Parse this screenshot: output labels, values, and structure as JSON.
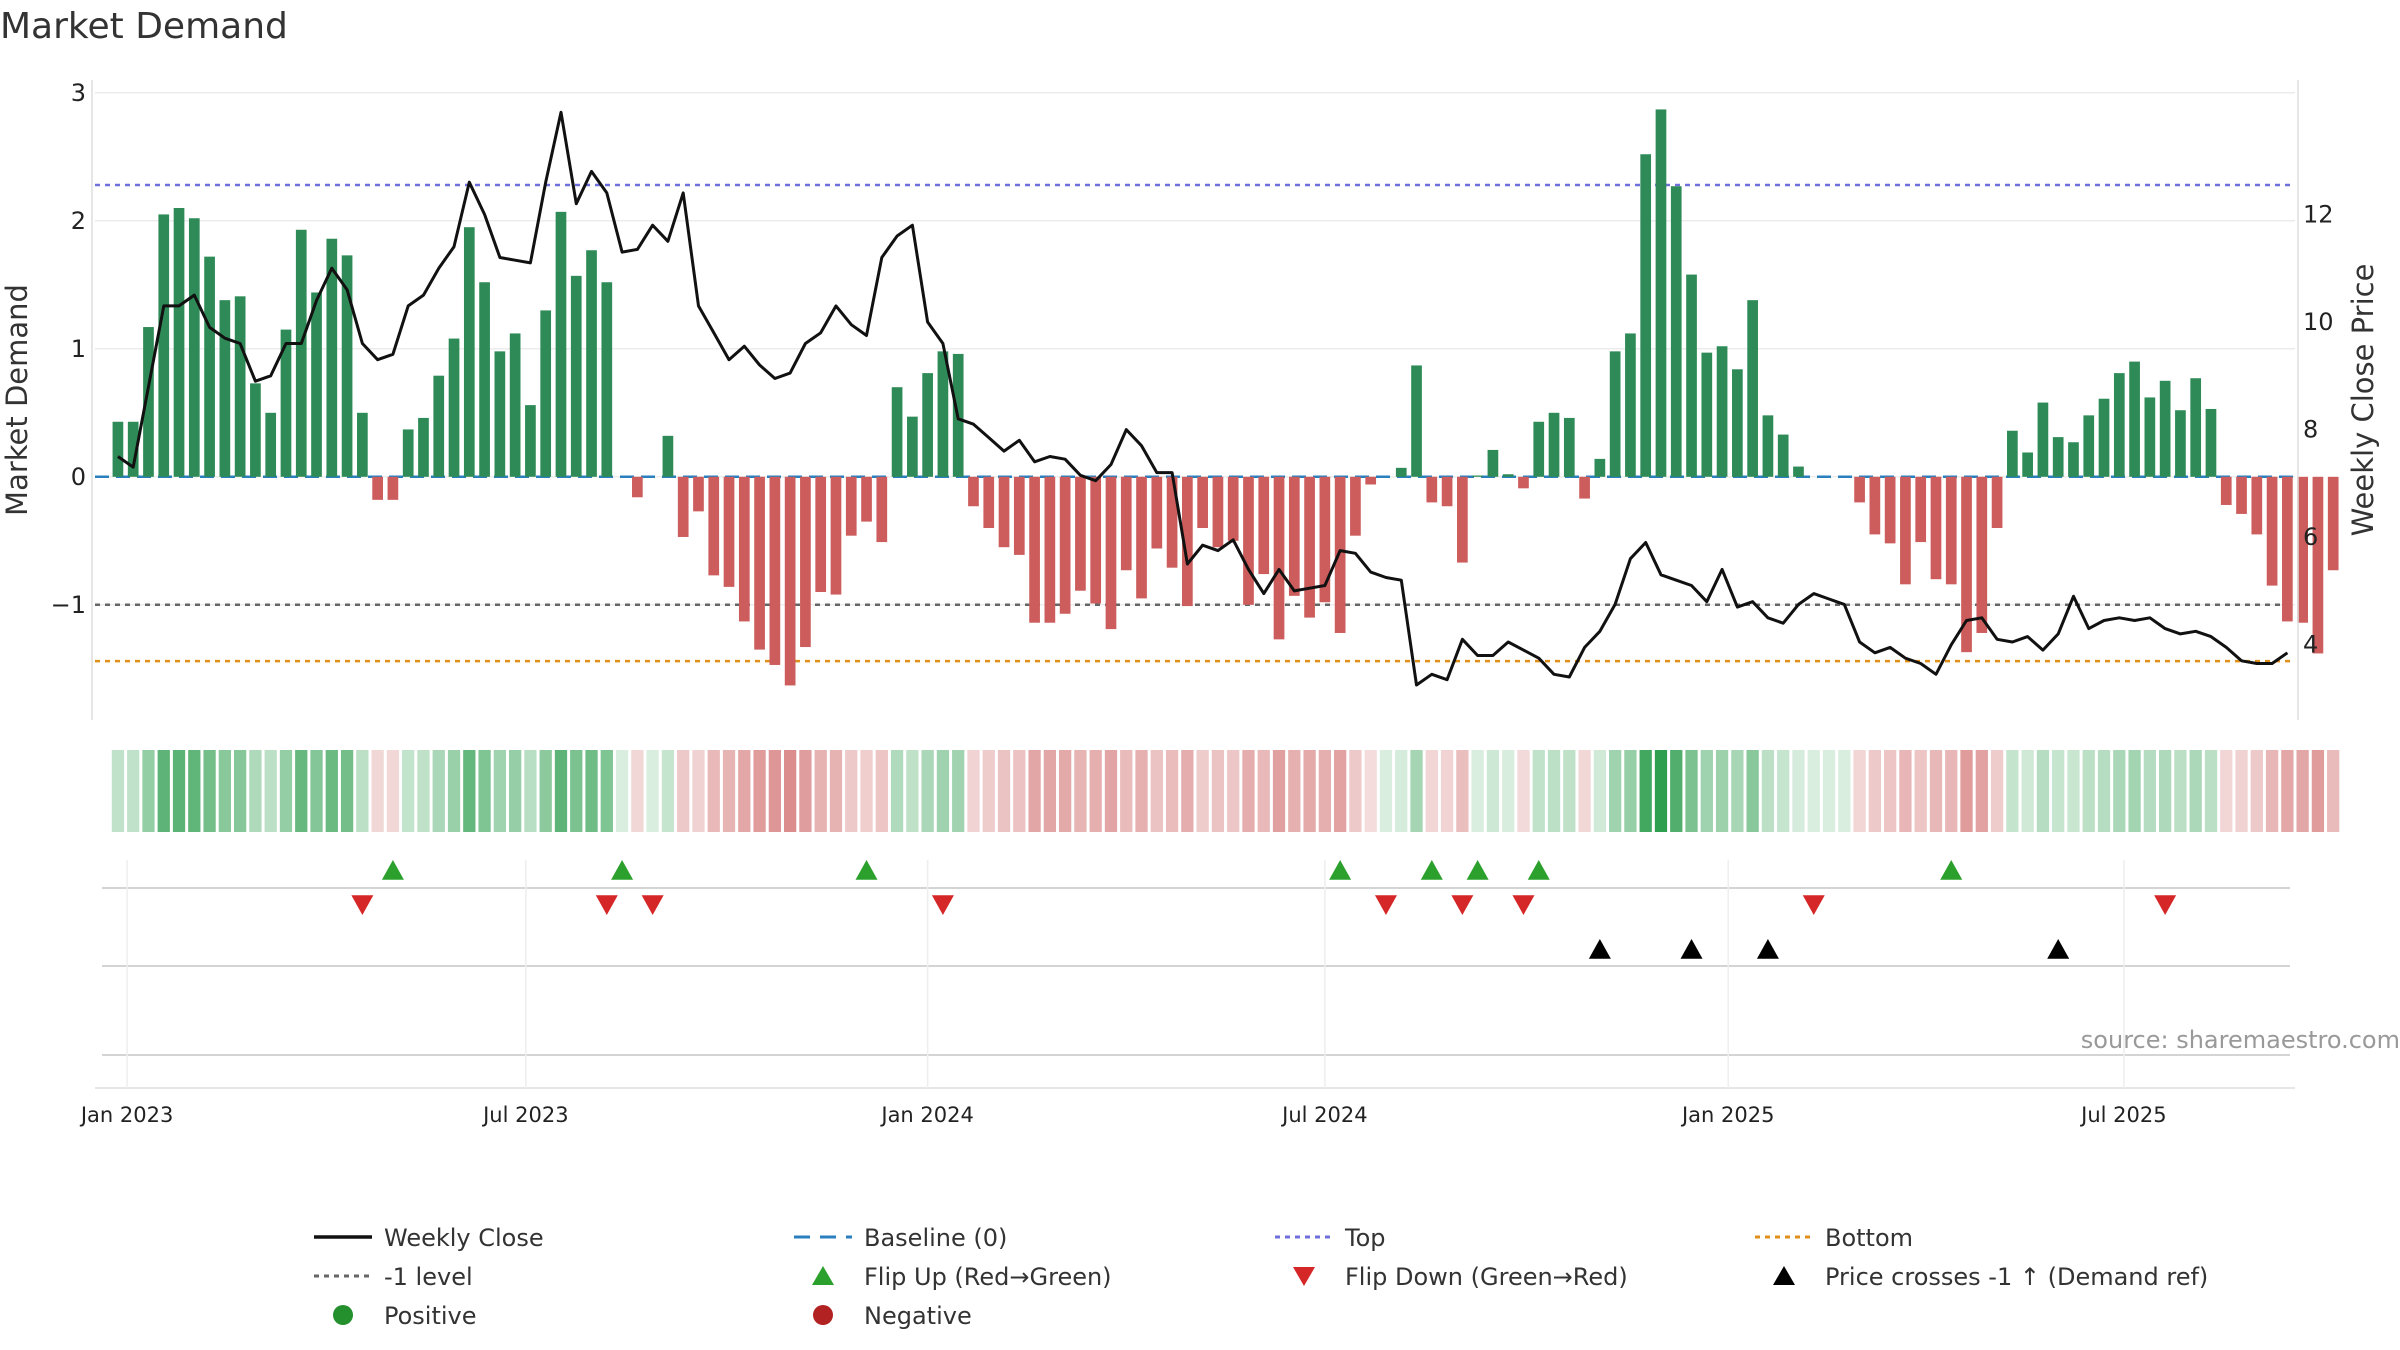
{
  "chart_data": {
    "type": "bar",
    "title": "Market Demand",
    "ylabel_left": "Market Demand",
    "ylabel_right": "Weekly Close Price",
    "ylim_left": [
      -1.9,
      3.1
    ],
    "ylim_right": [
      2.6,
      14.5
    ],
    "yticks_left": [
      3,
      2,
      1,
      0,
      -1
    ],
    "ytick_labels_left": [
      "3",
      "2",
      "1",
      "0",
      "−1"
    ],
    "yticks_right": [
      12,
      10,
      8,
      6,
      4
    ],
    "ytick_labels_right": [
      "12",
      "10",
      "8",
      "6",
      "4"
    ],
    "x_week_range": [
      -1.5,
      142.5
    ],
    "x_ticks": [
      {
        "label": "Jan 2023",
        "week": 0.6
      },
      {
        "label": "Jul 2023",
        "week": 26.7
      },
      {
        "label": "Jan 2024",
        "week": 53.0
      },
      {
        "label": "Jul 2024",
        "week": 79.0
      },
      {
        "label": "Jan 2025",
        "week": 105.4
      },
      {
        "label": "Jul 2025",
        "week": 131.3
      }
    ],
    "reference_lines": {
      "top": 2.28,
      "minus_one": -1.0,
      "bottom": -1.44,
      "baseline": 0
    },
    "demand_values": [
      0.43,
      0.43,
      1.17,
      2.05,
      2.1,
      2.02,
      1.72,
      1.38,
      1.41,
      0.73,
      0.5,
      1.15,
      1.93,
      1.44,
      1.86,
      1.73,
      0.5,
      -0.18,
      -0.18,
      0.37,
      0.46,
      0.79,
      1.08,
      1.95,
      1.52,
      0.98,
      1.12,
      0.56,
      1.3,
      2.07,
      1.57,
      1.77,
      1.52,
      0,
      -0.16,
      0,
      0.32,
      -0.47,
      -0.27,
      -0.77,
      -0.86,
      -1.13,
      -1.35,
      -1.47,
      -1.63,
      -1.33,
      -0.9,
      -0.92,
      -0.46,
      -0.35,
      -0.51,
      0.7,
      0.47,
      0.81,
      0.98,
      0.96,
      -0.23,
      -0.4,
      -0.55,
      -0.61,
      -1.14,
      -1.14,
      -1.07,
      -0.89,
      -0.99,
      -1.19,
      -0.73,
      -0.95,
      -0.56,
      -0.71,
      -1.01,
      -0.4,
      -0.55,
      -0.5,
      -1.0,
      -0.76,
      -1.27,
      -0.93,
      -1.1,
      -0.98,
      -1.22,
      -0.46,
      -0.06,
      0,
      0.07,
      0.87,
      -0.2,
      -0.23,
      -0.67,
      0.01,
      0.21,
      0.02,
      -0.09,
      0.43,
      0.5,
      0.46,
      -0.17,
      0.14,
      0.98,
      1.12,
      2.52,
      2.87,
      2.27,
      1.58,
      0.97,
      1.02,
      0.84,
      1.38,
      0.48,
      0.33,
      0.08,
      0,
      0,
      0,
      -0.2,
      -0.45,
      -0.52,
      -0.84,
      -0.51,
      -0.8,
      -0.84,
      -1.37,
      -1.22,
      -0.4,
      0.36,
      0.19,
      0.58,
      0.31,
      0.27,
      0.48,
      0.61,
      0.81,
      0.9,
      0.62,
      0.75,
      0.52,
      0.77,
      0.53,
      -0.22,
      -0.29,
      -0.45,
      -0.85,
      -1.13,
      -1.14,
      -1.38,
      -0.73
    ],
    "weekly_close": [
      7.5,
      7.3,
      8.8,
      10.3,
      10.3,
      10.5,
      9.9,
      9.7,
      9.6,
      8.9,
      9.0,
      9.6,
      9.6,
      10.4,
      11.0,
      10.6,
      9.6,
      9.3,
      9.4,
      10.3,
      10.5,
      11.0,
      11.4,
      12.6,
      12.0,
      11.2,
      11.15,
      11.1,
      12.6,
      13.9,
      12.2,
      12.8,
      12.4,
      11.3,
      11.35,
      11.8,
      11.5,
      12.4,
      10.3,
      9.8,
      9.3,
      9.55,
      9.2,
      8.95,
      9.05,
      9.6,
      9.8,
      10.3,
      9.95,
      9.75,
      11.2,
      11.6,
      11.8,
      10.0,
      9.6,
      8.2,
      8.1,
      7.85,
      7.6,
      7.8,
      7.4,
      7.5,
      7.45,
      7.15,
      7.05,
      7.35,
      8.0,
      7.7,
      7.2,
      7.2,
      5.5,
      5.85,
      5.75,
      5.95,
      5.4,
      4.95,
      5.4,
      5.0,
      5.05,
      5.1,
      5.75,
      5.7,
      5.35,
      5.25,
      5.2,
      3.25,
      3.45,
      3.35,
      4.1,
      3.8,
      3.8,
      4.05,
      3.9,
      3.75,
      3.45,
      3.4,
      3.95,
      4.25,
      4.75,
      5.6,
      5.9,
      5.3,
      5.2,
      5.1,
      4.8,
      5.4,
      4.7,
      4.8,
      4.5,
      4.4,
      4.75,
      4.95,
      4.85,
      4.75,
      4.05,
      3.85,
      3.95,
      3.75,
      3.65,
      3.45,
      4.0,
      4.45,
      4.5,
      4.1,
      4.05,
      4.15,
      3.9,
      4.2,
      4.9,
      4.3,
      4.45,
      4.5,
      4.45,
      4.5,
      4.3,
      4.2,
      4.25,
      4.15,
      3.95,
      3.7,
      3.65,
      3.65,
      3.85
    ],
    "flip_up_weeks": [
      18,
      33,
      49,
      80,
      86,
      89,
      93,
      120
    ],
    "flip_down_weeks": [
      16,
      32,
      35,
      54,
      83,
      88,
      92,
      111,
      134
    ],
    "price_cross_weeks": [
      97,
      103,
      108,
      127
    ],
    "source_note": "source: sharemaestro.com",
    "legend": [
      "Weekly Close",
      "Baseline (0)",
      "Top",
      "Bottom",
      "-1 level",
      "Flip Up (Red→Green)",
      "Flip Down (Green→Red)",
      "Price crosses -1 ↑ (Demand ref)",
      "Positive",
      "Negative"
    ]
  },
  "colors": {
    "positive_bar": "#2e8b57",
    "negative_bar": "#cd5c5c",
    "heat_positive": "#2e9e4f",
    "heat_negative": "#c85050",
    "price_line": "#111111",
    "top_line": "#7070dd",
    "bottom_line": "#e0901a",
    "minus_one_line": "#666666",
    "baseline": "#2a7fbf",
    "flip_up": "#2ca02c",
    "flip_down": "#d62728",
    "price_cross": "#000000",
    "legend_positive": "#23902d",
    "legend_negative": "#b22222"
  }
}
